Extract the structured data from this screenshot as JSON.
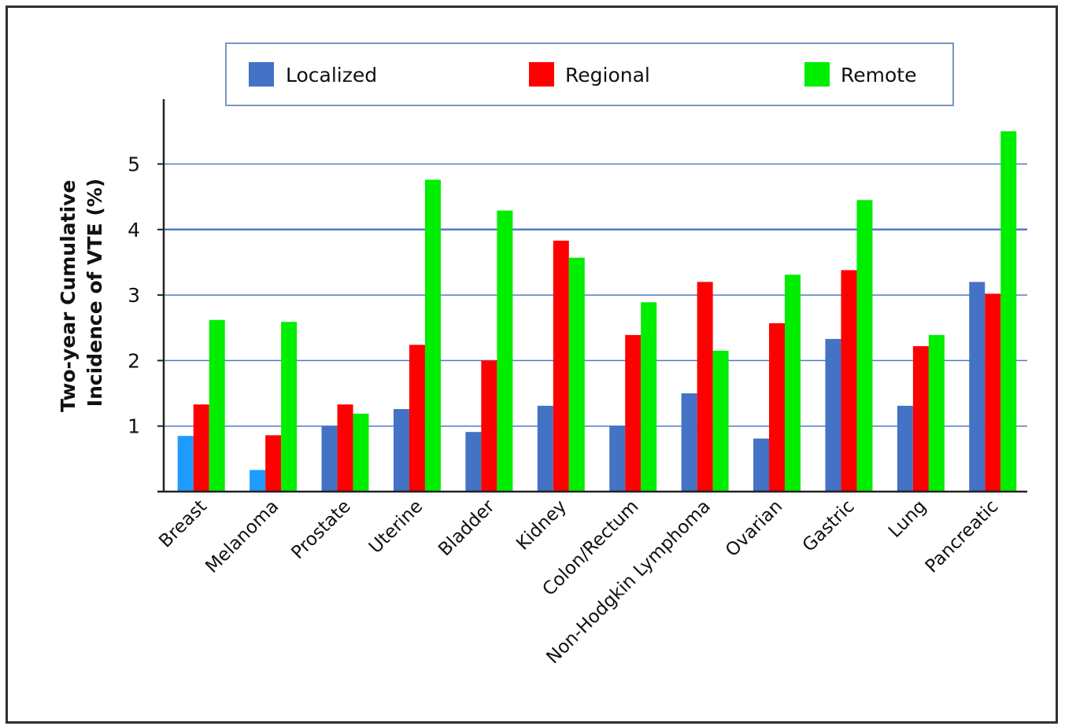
{
  "chart_data": {
    "type": "bar",
    "title": "",
    "xlabel": "",
    "ylabel_lines": [
      "Two-year Cumulative",
      "Incidence of VTE (%)"
    ],
    "ylim": [
      0,
      5.6
    ],
    "yticks": [
      1,
      2,
      3,
      4,
      5
    ],
    "grid": true,
    "legend_position": "top",
    "categories": [
      "Breast",
      "Melanoma",
      "Prostate",
      "Uterine",
      "Bladder",
      "Kidney",
      "Colon/Rectum",
      "Non-Hodgkin Lymphoma",
      "Ovarian",
      "Gastric",
      "Lung",
      "Pancreatic"
    ],
    "series": [
      {
        "name": "Localized",
        "color": "#4472c4",
        "values": [
          0.85,
          0.33,
          0.99,
          1.26,
          0.91,
          1.31,
          1.0,
          1.5,
          0.81,
          2.33,
          1.31,
          3.2
        ]
      },
      {
        "name": "Regional",
        "color": "#ff0000",
        "values": [
          1.33,
          0.86,
          1.33,
          2.24,
          2.0,
          3.83,
          2.39,
          3.2,
          2.57,
          3.38,
          2.22,
          3.02
        ]
      },
      {
        "name": "Remote",
        "color": "#00ee00",
        "values": [
          2.62,
          2.59,
          1.19,
          4.76,
          4.29,
          3.57,
          2.89,
          2.15,
          3.31,
          4.45,
          2.39,
          5.5
        ]
      }
    ],
    "bar_color_overrides": [
      {
        "series": "Localized",
        "category": "Breast",
        "color": "#1e9bff"
      },
      {
        "series": "Localized",
        "category": "Melanoma",
        "color": "#1e9bff"
      }
    ]
  }
}
